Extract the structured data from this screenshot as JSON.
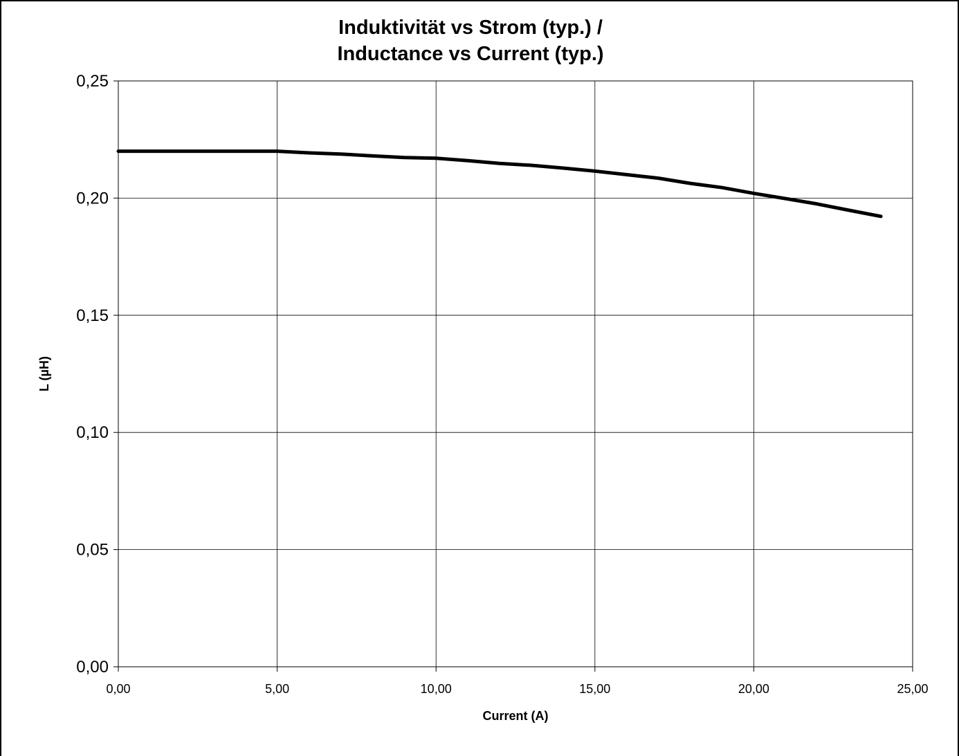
{
  "chart_data": {
    "type": "line",
    "title_line1": "Induktivität vs Strom (typ.) /",
    "title_line2": "Inductance vs Current (typ.)",
    "xlabel": "Current (A)",
    "ylabel": "L (µH)",
    "xlim": [
      0,
      25
    ],
    "ylim": [
      0,
      0.25
    ],
    "grid": true,
    "legend": "none",
    "x_ticks": [
      "0,00",
      "5,00",
      "10,00",
      "15,00",
      "20,00",
      "25,00"
    ],
    "y_ticks": [
      "0,00",
      "0,05",
      "0,10",
      "0,15",
      "0,20",
      "0,25"
    ],
    "series": [
      {
        "color": "#000000",
        "x": [
          0,
          1,
          2,
          3,
          4,
          5,
          6,
          7,
          8,
          9,
          10,
          11,
          12,
          13,
          14,
          15,
          16,
          17,
          18,
          19,
          20,
          21,
          22,
          23,
          24
        ],
        "y": [
          0.22,
          0.22,
          0.22,
          0.22,
          0.22,
          0.22,
          0.2193,
          0.2188,
          0.218,
          0.2173,
          0.217,
          0.216,
          0.2148,
          0.214,
          0.2128,
          0.2115,
          0.21,
          0.2085,
          0.2063,
          0.2045,
          0.202,
          0.1998,
          0.1975,
          0.1948,
          0.1922
        ]
      }
    ]
  }
}
